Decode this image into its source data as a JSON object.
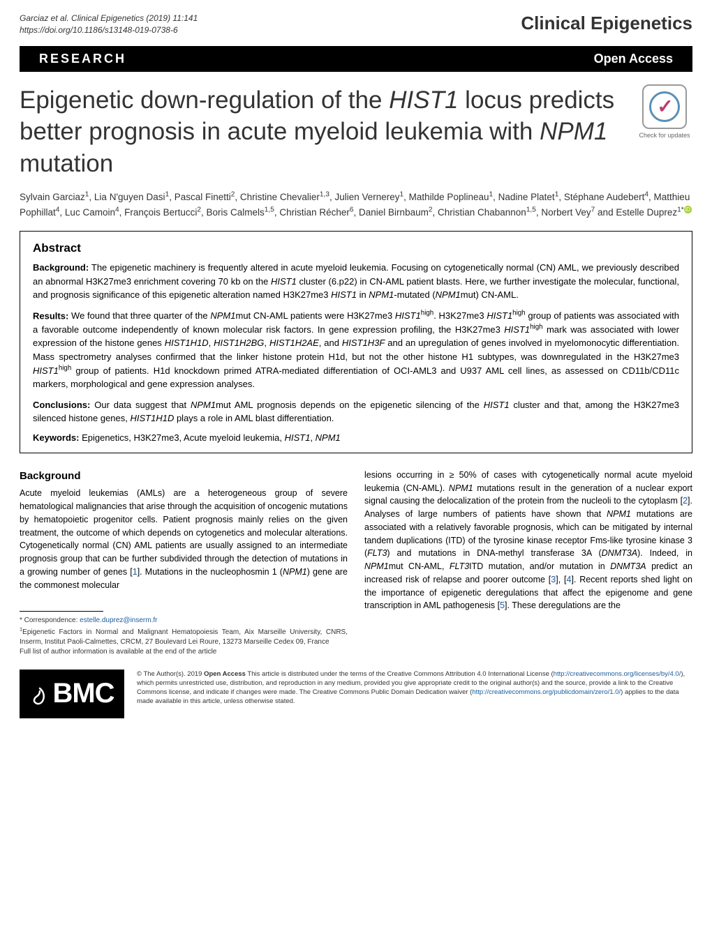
{
  "header": {
    "citation_line1": "Garciaz et al. Clinical Epigenetics       (2019) 11:141",
    "citation_line2": "https://doi.org/10.1186/s13148-019-0738-6",
    "journal": "Clinical Epigenetics"
  },
  "bar": {
    "research": "RESEARCH",
    "open_access": "Open Access"
  },
  "title": "Epigenetic down-regulation of the <em>HIST1</em> locus predicts better prognosis in acute myeloid leukemia with <em>NPM1</em> mutation",
  "check_updates": "Check for updates",
  "authors": "Sylvain Garciaz<sup>1</sup>, Lia N'guyen Dasi<sup>1</sup>, Pascal Finetti<sup>2</sup>, Christine Chevalier<sup>1,3</sup>, Julien Vernerey<sup>1</sup>, Mathilde Poplineau<sup>1</sup>, Nadine Platet<sup>1</sup>, Stéphane Audebert<sup>4</sup>, Matthieu Pophillat<sup>4</sup>, Luc Camoin<sup>4</sup>, François Bertucci<sup>2</sup>, Boris Calmels<sup>1,5</sup>, Christian Récher<sup>6</sup>, Daniel Birnbaum<sup>2</sup>, Christian Chabannon<sup>1,5</sup>, Norbert Vey<sup>7</sup> and Estelle Duprez<sup>1*</sup>",
  "abstract": {
    "heading": "Abstract",
    "background_label": "Background:",
    "background_text": " The epigenetic machinery is frequently altered in acute myeloid leukemia. Focusing on cytogenetically normal (CN) AML, we previously described an abnormal H3K27me3 enrichment covering 70 kb on the <em>HIST1</em> cluster (6.p22) in CN-AML patient blasts. Here, we further investigate the molecular, functional, and prognosis significance of this epigenetic alteration named H3K27me3 <em>HIST1</em> in <em>NPM1</em>-mutated (<em>NPM1</em>mut) CN-AML.",
    "results_label": "Results:",
    "results_text": " We found that three quarter of the <em>NPM1</em>mut CN-AML patients were H3K27me3 <em>HIST1</em><sup>high</sup>. H3K27me3 <em>HIST1</em><sup>high</sup> group of patients was associated with a favorable outcome independently of known molecular risk factors. In gene expression profiling, the H3K27me3 <em>HIST1</em><sup>high</sup> mark was associated with lower expression of the histone genes <em>HIST1H1D</em>, <em>HIST1H2BG</em>, <em>HIST1H2AE</em>, and <em>HIST1H3F</em> and an upregulation of genes involved in myelomonocytic differentiation. Mass spectrometry analyses confirmed that the linker histone protein H1d, but not the other histone H1 subtypes, was downregulated in the H3K27me3 <em>HIST1</em><sup>high</sup> group of patients. H1d knockdown primed ATRA-mediated differentiation of OCI-AML3 and U937 AML cell lines, as assessed on CD11b/CD11c markers, morphological and gene expression analyses.",
    "conclusions_label": "Conclusions:",
    "conclusions_text": " Our data suggest that <em>NPM1</em>mut AML prognosis depends on the epigenetic silencing of the <em>HIST1</em> cluster and that, among the H3K27me3 silenced histone genes, <em>HIST1H1D</em> plays a role in AML blast differentiation.",
    "keywords_label": "Keywords:",
    "keywords_text": " Epigenetics, H3K27me3, Acute myeloid leukemia, <em>HIST1</em>, <em>NPM1</em>"
  },
  "body": {
    "background_heading": "Background",
    "left_col": "Acute myeloid leukemias (AMLs) are a heterogeneous group of severe hematological malignancies that arise through the acquisition of oncogenic mutations by hematopoietic progenitor cells. Patient prognosis mainly relies on the given treatment, the outcome of which depends on cytogenetics and molecular alterations. Cytogenetically normal (CN) AML patients are usually assigned to an intermediate prognosis group that can be further subdivided through the detection of mutations in a growing number of genes [<a>1</a>]. Mutations in the nucleophosmin 1 (<em>NPM1</em>) gene are the commonest molecular",
    "right_col": "lesions occurring in ≥ 50% of cases with cytogenetically normal acute myeloid leukemia (CN-AML). <em>NPM1</em> mutations result in the generation of a nuclear export signal causing the delocalization of the protein from the nucleoli to the cytoplasm [<a>2</a>]. Analyses of large numbers of patients have shown that <em>NPM1</em> mutations are associated with a relatively favorable prognosis, which can be mitigated by internal tandem duplications (ITD) of the tyrosine kinase receptor Fms-like tyrosine kinase 3 (<em>FLT3</em>) and mutations in DNA-methyl transferase 3A (<em>DNMT3A</em>). Indeed, in <em>NPM1</em>mut CN-AML, <em>FLT3</em>ITD mutation, and/or mutation in <em>DNMT3A</em> predict an increased risk of relapse and poorer outcome [<a>3</a>], [<a>4</a>]. Recent reports shed light on the importance of epigenetic deregulations that affect the epigenome and gene transcription in AML pathogenesis [<a>5</a>]. These deregulations are the"
  },
  "correspondence": {
    "star": "* Correspondence: ",
    "email": "estelle.duprez@inserm.fr",
    "affil": "<sup>1</sup>Epigenetic Factors in Normal and Malignant Hematopoiesis Team, Aix Marseille University, CNRS, Inserm, Institut Paoli-Calmettes, CRCM, 27 Boulevard Lei Roure, 13273 Marseille Cedex 09, France",
    "note": "Full list of author information is available at the end of the article"
  },
  "footer": {
    "bmc": "BMC",
    "license": "© The Author(s). 2019 <b>Open Access</b> This article is distributed under the terms of the Creative Commons Attribution 4.0 International License (<a>http://creativecommons.org/licenses/by/4.0/</a>), which permits unrestricted use, distribution, and reproduction in any medium, provided you give appropriate credit to the original author(s) and the source, provide a link to the Creative Commons license, and indicate if changes were made. The Creative Commons Public Domain Dedication waiver (<a>http://creativecommons.org/publicdomain/zero/1.0/</a>) applies to the data made available in this article, unless otherwise stated."
  },
  "colors": {
    "link": "#1a5c9e",
    "bar_bg": "#000000",
    "text": "#333333"
  }
}
